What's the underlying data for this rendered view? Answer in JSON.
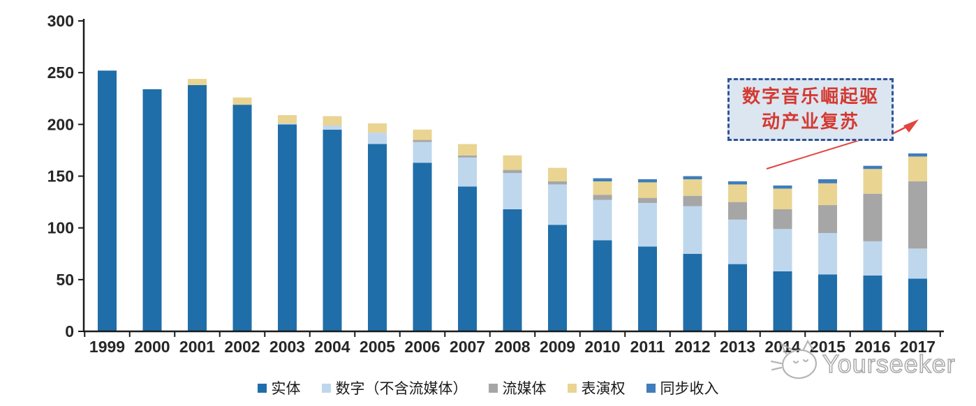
{
  "chart_data": {
    "type": "bar",
    "stacked": true,
    "title": "",
    "xlabel": "",
    "ylabel": "",
    "categories": [
      "1999",
      "2000",
      "2001",
      "2002",
      "2003",
      "2004",
      "2005",
      "2006",
      "2007",
      "2008",
      "2009",
      "2010",
      "2011",
      "2012",
      "2013",
      "2014",
      "2015",
      "2016",
      "2017"
    ],
    "series": [
      {
        "name": "实体",
        "color": "#1F6EA9",
        "values": [
          252,
          234,
          238,
          219,
          200,
          195,
          181,
          163,
          140,
          118,
          103,
          88,
          82,
          75,
          65,
          58,
          55,
          54,
          51
        ]
      },
      {
        "name": "数字（不含流媒体）",
        "color": "#BFD7ED",
        "values": [
          0,
          0,
          0,
          0,
          1,
          4,
          11,
          20,
          28,
          35,
          39,
          39,
          42,
          46,
          43,
          41,
          40,
          33,
          29
        ]
      },
      {
        "name": "流媒体",
        "color": "#A6A6A6",
        "values": [
          0,
          0,
          0,
          0,
          0,
          0,
          0,
          2,
          2,
          3,
          3,
          5,
          5,
          10,
          17,
          19,
          27,
          46,
          65
        ]
      },
      {
        "name": "表演权",
        "color": "#E9D492",
        "values": [
          0,
          0,
          6,
          7,
          8,
          9,
          9,
          10,
          11,
          14,
          13,
          13,
          15,
          16,
          17,
          20,
          21,
          24,
          24
        ]
      },
      {
        "name": "同步收入",
        "color": "#3F7DBC",
        "values": [
          0,
          0,
          0,
          0,
          0,
          0,
          0,
          0,
          0,
          0,
          0,
          3,
          3,
          3,
          3,
          3,
          4,
          3,
          3
        ]
      }
    ],
    "ylim": [
      0,
      300
    ],
    "yticks": [
      0,
      50,
      100,
      150,
      200,
      250,
      300
    ],
    "grid": false,
    "legend_position": "bottom",
    "axis_color": "#1A1A1A",
    "tick_label_color": "#262626"
  },
  "annotation": {
    "line1": "数字音乐崛起驱",
    "line2": "动产业复苏",
    "text_color": "#D43A32",
    "border_color": "#2F5496",
    "fill_color": "#DCE6F1",
    "arrow_color": "#E2453E"
  },
  "watermark": {
    "text": "Yourseeker",
    "logo": "cat-logo",
    "color": "#ABABAB"
  }
}
